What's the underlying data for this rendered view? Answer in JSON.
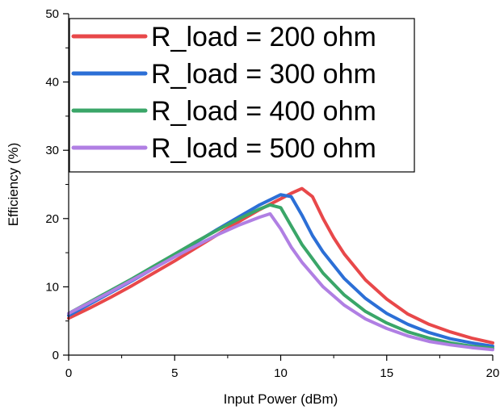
{
  "chart_data": {
    "type": "line",
    "title": "",
    "xlabel": "Input Power (dBm)",
    "ylabel": "Efficiency (%)",
    "xlim": [
      0,
      20
    ],
    "ylim": [
      0,
      50
    ],
    "xticks": [
      "0",
      "5",
      "10",
      "15",
      "20"
    ],
    "yticks": [
      "0",
      "10",
      "20",
      "30",
      "40",
      "50"
    ],
    "grid": false,
    "legend_position": "top-left",
    "series": [
      {
        "name": "R_load = 200 ohm",
        "color": "#e8484a",
        "x": [
          0,
          1,
          2,
          3,
          4,
          5,
          6,
          7,
          8,
          9,
          10,
          10.5,
          11,
          11.5,
          12,
          12.5,
          13,
          14,
          15,
          16,
          17,
          18,
          19,
          20
        ],
        "y": [
          5.4,
          6.9,
          8.5,
          10.2,
          12.0,
          13.8,
          15.7,
          17.6,
          19.5,
          21.3,
          22.9,
          23.7,
          24.4,
          23.2,
          20.0,
          17.2,
          14.8,
          11.0,
          8.2,
          6.0,
          4.5,
          3.4,
          2.5,
          1.8
        ]
      },
      {
        "name": "R_load = 300 ohm",
        "color": "#2c6fd6",
        "x": [
          0,
          1,
          2,
          3,
          4,
          5,
          6,
          7,
          8,
          9,
          10,
          10.5,
          11,
          11.5,
          12,
          13,
          14,
          15,
          16,
          17,
          18,
          19,
          20
        ],
        "y": [
          5.8,
          7.5,
          9.2,
          10.9,
          12.7,
          14.6,
          16.5,
          18.4,
          20.2,
          22.0,
          23.5,
          23.2,
          20.5,
          17.5,
          15.1,
          11.2,
          8.3,
          6.1,
          4.5,
          3.3,
          2.4,
          1.8,
          1.3
        ]
      },
      {
        "name": "R_load = 400 ohm",
        "color": "#3aa668",
        "x": [
          0,
          1,
          2,
          3,
          4,
          5,
          6,
          7,
          8,
          9,
          9.5,
          10,
          10.5,
          11,
          12,
          13,
          14,
          15,
          16,
          17,
          18,
          19,
          20
        ],
        "y": [
          6.1,
          7.8,
          9.5,
          11.2,
          13.0,
          14.8,
          16.6,
          18.3,
          19.9,
          21.4,
          22.0,
          21.6,
          18.9,
          16.2,
          12.0,
          8.8,
          6.4,
          4.7,
          3.4,
          2.5,
          1.8,
          1.3,
          1.0
        ]
      },
      {
        "name": "R_load = 500 ohm",
        "color": "#b07fe3",
        "x": [
          0,
          1,
          2,
          3,
          4,
          5,
          6,
          7,
          8,
          9,
          9.5,
          10,
          10.5,
          11,
          12,
          13,
          14,
          15,
          16,
          17,
          18,
          19,
          20
        ],
        "y": [
          6.1,
          7.7,
          9.3,
          11.0,
          12.7,
          14.4,
          16.0,
          17.6,
          19.0,
          20.2,
          20.7,
          18.5,
          15.8,
          13.6,
          10.0,
          7.3,
          5.3,
          3.9,
          2.8,
          2.0,
          1.5,
          1.1,
          0.8
        ]
      }
    ]
  }
}
